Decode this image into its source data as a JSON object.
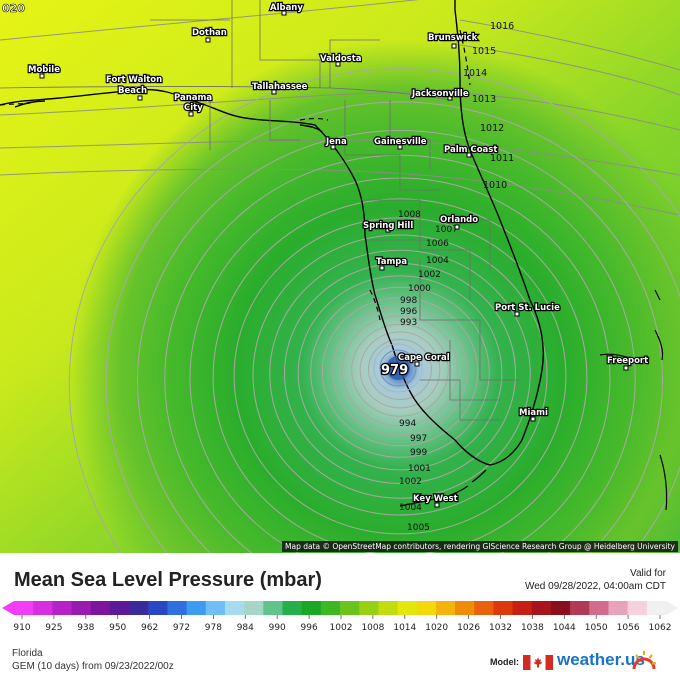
{
  "map": {
    "frame_code": "020",
    "attribution": "Map data © OpenStreetMap contributors, rendering GIScience Research Group @ Heidelberg University",
    "low_center_value": "979",
    "cities": [
      {
        "id": "albany",
        "name": "Albany"
      },
      {
        "id": "dothan",
        "name": "Dothan"
      },
      {
        "id": "brunswick",
        "name": "Brunswick"
      },
      {
        "id": "mobile",
        "name": "Mobile"
      },
      {
        "id": "fort-walton",
        "name": "Fort Walton"
      },
      {
        "id": "fort-walton-2",
        "name": "Beach"
      },
      {
        "id": "valdosta",
        "name": "Valdosta"
      },
      {
        "id": "panama",
        "name": "Panama"
      },
      {
        "id": "panama-2",
        "name": "City"
      },
      {
        "id": "tallahassee",
        "name": "Tallahassee"
      },
      {
        "id": "jacksonville",
        "name": "Jacksonville"
      },
      {
        "id": "jena",
        "name": "Jena"
      },
      {
        "id": "gainesville",
        "name": "Gainesville"
      },
      {
        "id": "palm-coast",
        "name": "Palm Coast"
      },
      {
        "id": "orlando",
        "name": "Orlando"
      },
      {
        "id": "spring-hill",
        "name": "Spring Hill"
      },
      {
        "id": "tampa",
        "name": "Tampa"
      },
      {
        "id": "port-st-lucie",
        "name": "Port St. Lucie"
      },
      {
        "id": "cape-coral",
        "name": "Cape Coral"
      },
      {
        "id": "freeport",
        "name": "Freeport"
      },
      {
        "id": "miami",
        "name": "Miami"
      },
      {
        "id": "key-west",
        "name": "Key West"
      }
    ],
    "isobar_labels_right": [
      "1016",
      "1015",
      "1014",
      "1013",
      "1012",
      "1011",
      "1010"
    ],
    "isobar_labels_center": [
      "1008",
      "1007",
      "1006",
      "1004",
      "1002",
      "1000",
      "998",
      "996",
      "993",
      "994",
      "997",
      "999",
      "1001",
      "1002",
      "1004",
      "1005"
    ]
  },
  "header": {
    "title": "Mean Sea Level Pressure (mbar)",
    "valid_label": "Valid for",
    "valid_value": "Wed 09/28/2022, 04:00am CDT"
  },
  "colorbar": {
    "unit": "mbar",
    "min": 910,
    "max": 1062,
    "ticks": [
      "910",
      "925",
      "938",
      "950",
      "962",
      "972",
      "978",
      "984",
      "990",
      "996",
      "1002",
      "1008",
      "1014",
      "1020",
      "1026",
      "1032",
      "1038",
      "1044",
      "1050",
      "1056",
      "1062"
    ],
    "colors": [
      "#f23cf5",
      "#d62ee0",
      "#b523c8",
      "#9a1bb0",
      "#7d159d",
      "#5c1a98",
      "#3a2a9e",
      "#2b46c2",
      "#2f6fe0",
      "#3f9af2",
      "#6fbff5",
      "#a7dbf2",
      "#a6d7c6",
      "#5fc48c",
      "#25b04a",
      "#1aa824",
      "#3bb822",
      "#6ac41b",
      "#97d015",
      "#c2dc10",
      "#e4e70e",
      "#f3d80c",
      "#f4b40b",
      "#f08c0a",
      "#e9610a",
      "#dc3a0c",
      "#c81f14",
      "#a8141b",
      "#8a0f1e",
      "#b13b57",
      "#d36b8d",
      "#e9a2bc",
      "#f6d0dd",
      "#f0f0f0"
    ]
  },
  "footer": {
    "region": "Florida",
    "model_run": "GEM (10 days)  from  09/23/2022/00z",
    "model_label": "Model:",
    "brand": "weather.us"
  },
  "colors": {
    "storm_core": "#2e5fb0",
    "storm_inner": "#a9c9c9",
    "green_field": "#43b837",
    "yellow_field": "#d9f21a"
  }
}
